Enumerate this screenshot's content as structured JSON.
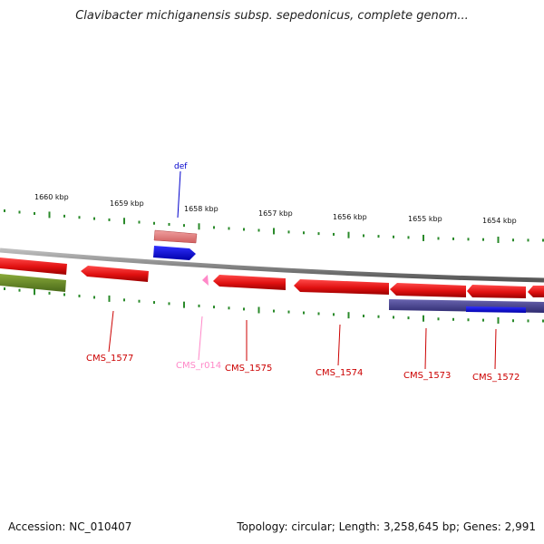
{
  "title": "Clavibacter michiganensis subsp. sepedonicus, complete genom...",
  "footer": {
    "accession": "Accession: NC_010407",
    "summary": "Topology: circular; Length: 3,258,645 bp; Genes: 2,991"
  },
  "scale_labels": [
    "1660 kbp",
    "1659 kbp",
    "1658 kbp",
    "1657 kbp",
    "1656 kbp",
    "1655 kbp",
    "1654 kbp"
  ],
  "features": [
    {
      "label": "def",
      "strand": "forward",
      "color": "#0000cc"
    },
    {
      "label": "CMS_1577",
      "strand": "reverse",
      "color": "#cc0000"
    },
    {
      "label": "CMS_r014",
      "strand": "reverse",
      "color": "#ff88c8"
    },
    {
      "label": "CMS_1575",
      "strand": "reverse",
      "color": "#cc0000"
    },
    {
      "label": "CMS_1574",
      "strand": "reverse",
      "color": "#cc0000"
    },
    {
      "label": "CMS_1573",
      "strand": "reverse",
      "color": "#cc0000"
    },
    {
      "label": "CMS_1572",
      "strand": "reverse",
      "color": "#cc0000"
    }
  ],
  "colors": {
    "gene": "#e01010",
    "gene_light": "#e88080",
    "cds_blue": "#0000ee",
    "rna_pink": "#ff88c8",
    "misc_green": "#6a8a2a",
    "region_purple": "#4a4590",
    "backbone": "#8a8a8a",
    "tick": "#2a8a2a"
  }
}
